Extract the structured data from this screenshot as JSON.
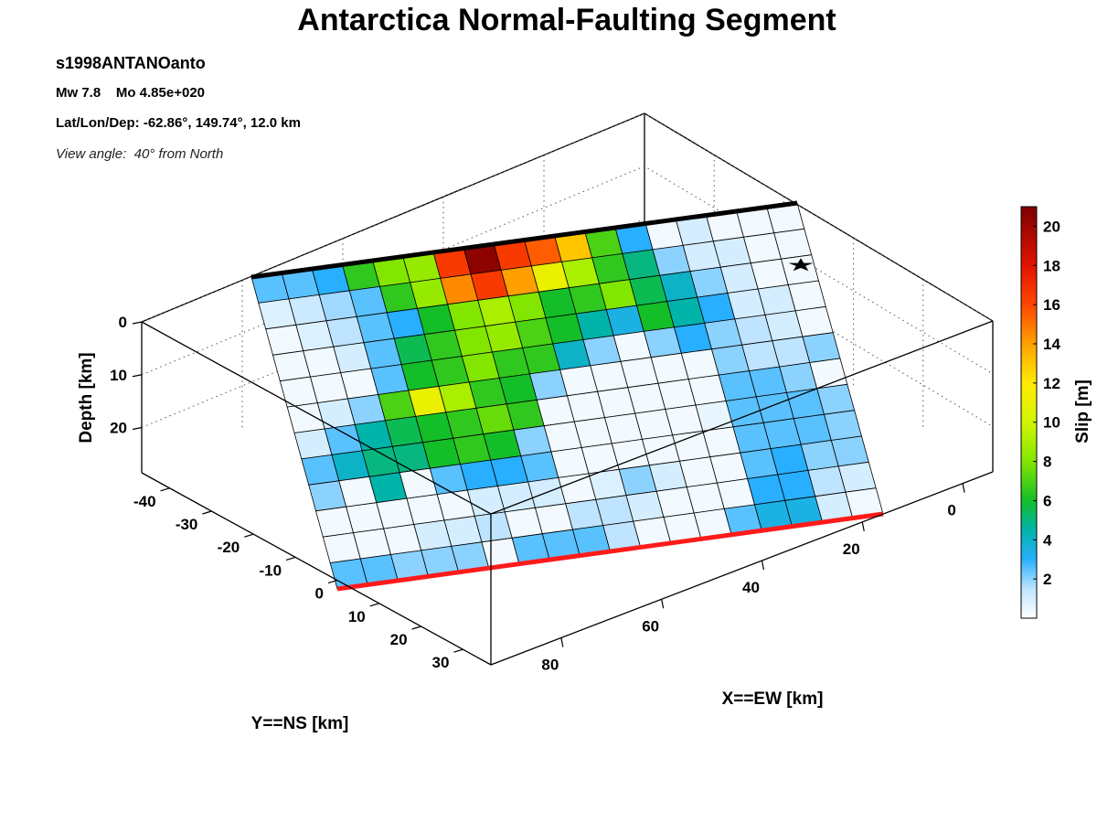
{
  "header": {
    "title": "Antarctica Normal-Faulting Segment",
    "event_id": "s1998ANTANOanto",
    "magnitude_line": "Mw 7.8    Mo 4.85e+020",
    "location_line": "Lat/Lon/Dep: -62.86°, 149.74°, 12.0 km",
    "view_line": "View angle:  40° from North"
  },
  "chart_data": {
    "type": "heatmap",
    "title": "Antarctica Normal-Faulting Segment",
    "xlabel": "X==EW [km]",
    "ylabel": "Y==NS [km]",
    "zlabel": "Depth [km]",
    "colorbar_label": "Slip [m]",
    "x_ticks": [
      "0",
      "20",
      "40",
      "60",
      "80"
    ],
    "y_ticks": [
      "-40",
      "-30",
      "-20",
      "-10",
      "0",
      "10",
      "20",
      "30"
    ],
    "z_ticks": [
      "0",
      "10",
      "20"
    ],
    "colorbar_ticks": [
      "2",
      "4",
      "6",
      "8",
      "10",
      "12",
      "14",
      "16",
      "18",
      "20"
    ],
    "colorbar_range": [
      0,
      21
    ],
    "grid": true,
    "colors": {
      "top_edge": "#000000",
      "bottom_edge": "#ff1a1a",
      "hypocenter": "#000000"
    },
    "hypocenter_icon": "star-icon",
    "fault_rows": 12,
    "fault_cols": 18,
    "slip_m": [
      [
        2.5,
        2.5,
        3.0,
        6.5,
        8.0,
        8.5,
        16.5,
        20.5,
        16.5,
        15.5,
        13.0,
        7.0,
        3.0,
        0.3,
        1.0,
        0.3,
        0.3,
        0.3
      ],
      [
        0.8,
        1.2,
        1.8,
        2.5,
        6.5,
        8.5,
        14.5,
        16.5,
        14.0,
        11.0,
        9.0,
        6.5,
        5.0,
        2.0,
        1.0,
        1.0,
        0.3,
        0.3
      ],
      [
        0.3,
        0.8,
        1.5,
        2.5,
        3.0,
        6.0,
        8.0,
        9.0,
        8.0,
        6.0,
        6.5,
        8.0,
        5.5,
        4.0,
        2.0,
        1.0,
        0.3,
        0.3
      ],
      [
        0.3,
        0.3,
        1.0,
        2.5,
        5.5,
        6.5,
        8.0,
        8.5,
        7.0,
        6.0,
        4.5,
        3.5,
        6.0,
        4.5,
        3.0,
        1.0,
        1.0,
        0.3
      ],
      [
        0.3,
        0.3,
        0.3,
        2.5,
        6.0,
        6.5,
        8.0,
        6.5,
        6.5,
        4.0,
        2.0,
        0.3,
        2.0,
        3.0,
        2.0,
        1.5,
        1.0,
        0.3
      ],
      [
        0.3,
        1.0,
        2.0,
        7.0,
        11.0,
        9.0,
        6.5,
        6.0,
        2.0,
        0.3,
        0.3,
        0.3,
        0.3,
        0.3,
        2.0,
        1.5,
        1.5,
        2.0
      ],
      [
        1.0,
        2.5,
        4.5,
        5.5,
        6.0,
        6.5,
        7.5,
        6.5,
        0.3,
        0.3,
        0.3,
        0.3,
        0.3,
        0.3,
        2.5,
        2.5,
        2.0,
        0.3
      ],
      [
        2.5,
        4.0,
        5.0,
        5.0,
        6.0,
        6.5,
        6.0,
        2.0,
        0.3,
        0.3,
        0.3,
        0.3,
        0.3,
        0.5,
        2.5,
        2.5,
        2.5,
        2.0
      ],
      [
        2.0,
        0.3,
        4.5,
        0.3,
        2.5,
        3.0,
        3.0,
        2.5,
        0.3,
        0.3,
        0.3,
        0.3,
        0.3,
        0.3,
        2.5,
        2.5,
        2.5,
        2.0
      ],
      [
        0.3,
        0.3,
        0.3,
        0.3,
        0.3,
        1.0,
        1.0,
        1.0,
        0.3,
        0.8,
        2.0,
        1.0,
        0.3,
        0.3,
        2.5,
        3.0,
        2.0,
        2.0
      ],
      [
        0.3,
        0.3,
        0.3,
        1.0,
        1.0,
        1.5,
        0.3,
        0.3,
        1.5,
        1.5,
        1.0,
        0.3,
        0.3,
        0.3,
        3.0,
        3.0,
        1.5,
        1.0
      ],
      [
        2.5,
        2.5,
        2.0,
        2.0,
        2.0,
        0.3,
        2.5,
        2.5,
        2.5,
        1.5,
        0.3,
        0.3,
        0.3,
        2.5,
        3.5,
        3.5,
        1.0,
        0.3
      ]
    ]
  }
}
